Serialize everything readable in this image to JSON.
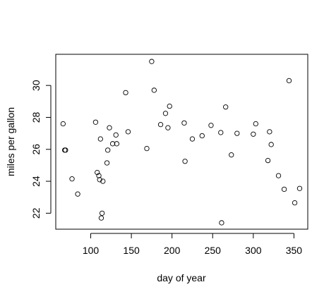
{
  "chart_data": {
    "type": "scatter",
    "title": "",
    "xlabel": "day of year",
    "ylabel": "miles per gallon",
    "xlim": [
      57,
      367
    ],
    "ylim": [
      21.0,
      31.95
    ],
    "xticks": [
      "100",
      "150",
      "200",
      "250",
      "300",
      "350"
    ],
    "xtick_values": [
      100,
      150,
      200,
      250,
      300,
      350
    ],
    "yticks": [
      "22",
      "24",
      "26",
      "28",
      "30"
    ],
    "ytick_values": [
      22,
      24,
      26,
      28,
      30
    ],
    "grid": false,
    "marker": "open-circle",
    "color": "#000000",
    "points": [
      [
        66,
        27.6
      ],
      [
        68,
        25.95
      ],
      [
        69,
        25.95
      ],
      [
        77,
        24.15
      ],
      [
        84,
        23.2
      ],
      [
        106,
        27.7
      ],
      [
        108,
        24.55
      ],
      [
        110,
        24.35
      ],
      [
        111,
        24.1
      ],
      [
        112,
        26.65
      ],
      [
        113,
        21.7
      ],
      [
        114,
        22.0
      ],
      [
        115,
        24.0
      ],
      [
        120,
        25.15
      ],
      [
        121,
        25.95
      ],
      [
        123,
        27.35
      ],
      [
        127,
        26.35
      ],
      [
        131,
        26.9
      ],
      [
        132,
        26.35
      ],
      [
        143,
        29.55
      ],
      [
        146,
        27.1
      ],
      [
        169,
        26.05
      ],
      [
        175,
        31.5
      ],
      [
        178,
        29.7
      ],
      [
        186,
        27.55
      ],
      [
        192,
        28.25
      ],
      [
        195,
        27.35
      ],
      [
        197,
        28.7
      ],
      [
        215,
        27.65
      ],
      [
        216,
        25.25
      ],
      [
        225,
        26.65
      ],
      [
        237,
        26.85
      ],
      [
        248,
        27.5
      ],
      [
        260,
        27.05
      ],
      [
        261,
        21.4
      ],
      [
        266,
        28.65
      ],
      [
        273,
        25.65
      ],
      [
        280,
        27.0
      ],
      [
        300,
        26.95
      ],
      [
        303,
        27.6
      ],
      [
        318,
        25.3
      ],
      [
        320,
        27.1
      ],
      [
        322,
        26.3
      ],
      [
        331,
        24.35
      ],
      [
        338,
        23.5
      ],
      [
        344,
        30.3
      ],
      [
        351,
        22.65
      ],
      [
        357,
        23.55
      ]
    ]
  }
}
